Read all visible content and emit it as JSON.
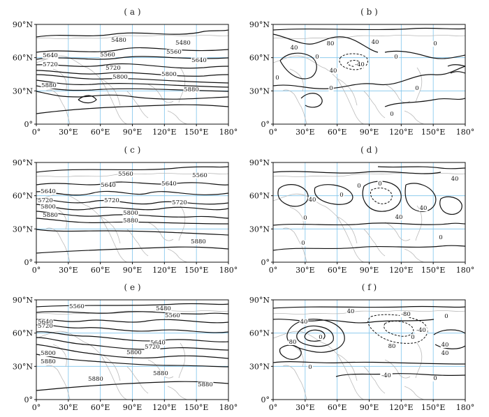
{
  "panels": [
    {
      "id": "a",
      "label": "( a )",
      "contour_labels": [
        "5480",
        "5480",
        "5560",
        "5560",
        "5640",
        "5640",
        "5720",
        "5720",
        "5800",
        "5800",
        "5880",
        "5880"
      ]
    },
    {
      "id": "b",
      "label": "( b )",
      "contour_labels": [
        "80",
        "40",
        "40",
        "0",
        "0",
        "0",
        "0",
        "40",
        "-40",
        "0",
        "0",
        "0"
      ]
    },
    {
      "id": "c",
      "label": "( c )",
      "contour_labels": [
        "5560",
        "5560",
        "5640",
        "5640",
        "5640",
        "5720",
        "5720",
        "5720",
        "5800",
        "5800",
        "5880",
        "5880",
        "5880"
      ]
    },
    {
      "id": "d",
      "label": "( d )",
      "contour_labels": [
        "40",
        "40",
        "40",
        "0",
        "0",
        "0",
        "0",
        "0",
        "40",
        "0"
      ]
    },
    {
      "id": "e",
      "label": "( e )",
      "contour_labels": [
        "5480",
        "5560",
        "5560",
        "5640",
        "5640",
        "5720",
        "5720",
        "5800",
        "5800",
        "5880",
        "5880",
        "5880",
        "5880"
      ]
    },
    {
      "id": "f",
      "label": "( f )",
      "contour_labels": [
        "40",
        "40",
        "80",
        "0",
        "0",
        "0",
        "-40",
        "-80",
        "-40",
        "0",
        "80",
        "40",
        "40",
        "0"
      ]
    }
  ],
  "axes": {
    "x_ticks": [
      "0°",
      "30°E",
      "60°E",
      "90°E",
      "120°E",
      "150°E",
      "180°"
    ],
    "y_ticks": [
      "0°",
      "30°N",
      "60°N",
      "90°N"
    ]
  }
}
